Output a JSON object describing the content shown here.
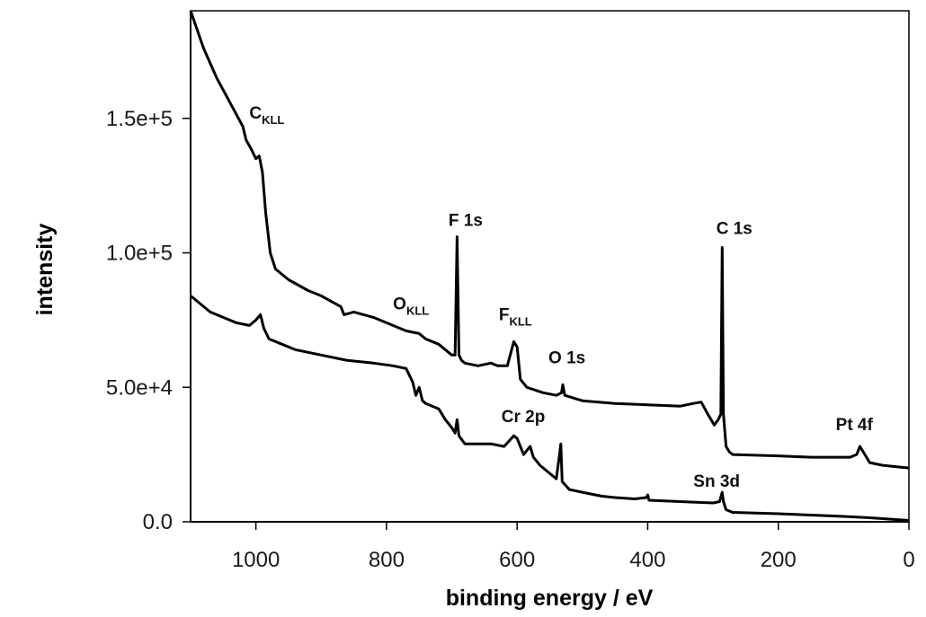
{
  "chart_data": {
    "type": "line",
    "xlabel": "binding energy / eV",
    "ylabel": "intensity",
    "xlim": [
      1100,
      0
    ],
    "ylim": [
      0,
      190000
    ],
    "x_reversed": true,
    "grid": false,
    "x_ticks": [
      {
        "value": 1000,
        "label": "1000"
      },
      {
        "value": 800,
        "label": "800"
      },
      {
        "value": 600,
        "label": "600"
      },
      {
        "value": 400,
        "label": "400"
      },
      {
        "value": 200,
        "label": "200"
      },
      {
        "value": 0,
        "label": "0"
      }
    ],
    "y_ticks": [
      {
        "value": 0,
        "label": "0.0"
      },
      {
        "value": 50000,
        "label": "5.0e+4"
      },
      {
        "value": 100000,
        "label": "1.0e+5"
      },
      {
        "value": 150000,
        "label": "1.5e+5"
      }
    ],
    "series": [
      {
        "points": [
          [
            1100,
            190000
          ],
          [
            1080,
            176000
          ],
          [
            1060,
            165000
          ],
          [
            1040,
            156000
          ],
          [
            1020,
            147000
          ],
          [
            1015,
            142000
          ],
          [
            1008,
            139000
          ],
          [
            1000,
            135000
          ],
          [
            995,
            136000
          ],
          [
            990,
            130000
          ],
          [
            985,
            115000
          ],
          [
            978,
            100000
          ],
          [
            970,
            94000
          ],
          [
            950,
            90000
          ],
          [
            920,
            86000
          ],
          [
            900,
            84000
          ],
          [
            870,
            80000
          ],
          [
            865,
            77000
          ],
          [
            850,
            78000
          ],
          [
            820,
            76000
          ],
          [
            800,
            74000
          ],
          [
            770,
            71000
          ],
          [
            750,
            70000
          ],
          [
            745,
            69000
          ],
          [
            740,
            68000
          ],
          [
            720,
            66000
          ],
          [
            700,
            62000
          ],
          [
            695,
            62000
          ],
          [
            692,
            106000
          ],
          [
            689,
            62000
          ],
          [
            685,
            60000
          ],
          [
            680,
            59000
          ],
          [
            660,
            58000
          ],
          [
            640,
            59000
          ],
          [
            630,
            58000
          ],
          [
            615,
            58000
          ],
          [
            605,
            67000
          ],
          [
            600,
            65000
          ],
          [
            595,
            53000
          ],
          [
            585,
            50000
          ],
          [
            560,
            48000
          ],
          [
            540,
            47000
          ],
          [
            532,
            48000
          ],
          [
            530,
            51000
          ],
          [
            527,
            47000
          ],
          [
            500,
            45000
          ],
          [
            450,
            44000
          ],
          [
            400,
            43500
          ],
          [
            350,
            43000
          ],
          [
            330,
            44000
          ],
          [
            318,
            44500
          ],
          [
            308,
            40000
          ],
          [
            298,
            36000
          ],
          [
            292,
            38000
          ],
          [
            288,
            40000
          ],
          [
            286,
            102000
          ],
          [
            284,
            40000
          ],
          [
            280,
            28000
          ],
          [
            275,
            26000
          ],
          [
            270,
            25000
          ],
          [
            200,
            24500
          ],
          [
            150,
            24000
          ],
          [
            90,
            24000
          ],
          [
            80,
            25000
          ],
          [
            75,
            28000
          ],
          [
            70,
            26000
          ],
          [
            60,
            22000
          ],
          [
            40,
            21000
          ],
          [
            0,
            20000
          ]
        ]
      },
      {
        "points": [
          [
            1100,
            84000
          ],
          [
            1090,
            82000
          ],
          [
            1070,
            78000
          ],
          [
            1050,
            76000
          ],
          [
            1030,
            74000
          ],
          [
            1010,
            73000
          ],
          [
            1000,
            75000
          ],
          [
            993,
            77000
          ],
          [
            988,
            72000
          ],
          [
            980,
            68000
          ],
          [
            960,
            66000
          ],
          [
            940,
            64000
          ],
          [
            920,
            63000
          ],
          [
            900,
            62000
          ],
          [
            860,
            60000
          ],
          [
            820,
            59000
          ],
          [
            790,
            58000
          ],
          [
            770,
            57000
          ],
          [
            760,
            52000
          ],
          [
            755,
            47000
          ],
          [
            750,
            50000
          ],
          [
            745,
            45000
          ],
          [
            740,
            44000
          ],
          [
            720,
            42000
          ],
          [
            710,
            38000
          ],
          [
            700,
            35000
          ],
          [
            695,
            33000
          ],
          [
            692,
            38000
          ],
          [
            689,
            32000
          ],
          [
            680,
            29000
          ],
          [
            660,
            29000
          ],
          [
            640,
            29000
          ],
          [
            620,
            28000
          ],
          [
            605,
            32000
          ],
          [
            600,
            31000
          ],
          [
            590,
            25000
          ],
          [
            580,
            28000
          ],
          [
            575,
            24000
          ],
          [
            565,
            21000
          ],
          [
            550,
            18000
          ],
          [
            540,
            16000
          ],
          [
            535,
            25000
          ],
          [
            533,
            29000
          ],
          [
            531,
            15000
          ],
          [
            520,
            12000
          ],
          [
            500,
            11000
          ],
          [
            490,
            10500
          ],
          [
            470,
            9500
          ],
          [
            450,
            9000
          ],
          [
            420,
            8500
          ],
          [
            402,
            9000
          ],
          [
            400,
            10000
          ],
          [
            398,
            8000
          ],
          [
            350,
            7500
          ],
          [
            300,
            7000
          ],
          [
            290,
            7500
          ],
          [
            286,
            11000
          ],
          [
            284,
            7500
          ],
          [
            280,
            4500
          ],
          [
            270,
            3500
          ],
          [
            200,
            3000
          ],
          [
            150,
            2500
          ],
          [
            100,
            2000
          ],
          [
            60,
            1500
          ],
          [
            30,
            1000
          ],
          [
            0,
            500
          ]
        ]
      }
    ],
    "annotations": [
      {
        "main": "C",
        "sub": "KLL",
        "x": 1010,
        "y": 150000
      },
      {
        "main": "F 1s",
        "x": 705,
        "y": 110000
      },
      {
        "main": "C 1s",
        "x": 295,
        "y": 107000
      },
      {
        "main": "O",
        "sub": "KLL",
        "x": 790,
        "y": 79000
      },
      {
        "main": "F",
        "sub": "KLL",
        "x": 628,
        "y": 75000
      },
      {
        "main": "O 1s",
        "x": 552,
        "y": 59000
      },
      {
        "main": "Cr 2p",
        "x": 624,
        "y": 37000
      },
      {
        "main": "Pt 4f",
        "x": 112,
        "y": 34000
      },
      {
        "main": "Sn 3d",
        "x": 330,
        "y": 13000
      }
    ]
  }
}
